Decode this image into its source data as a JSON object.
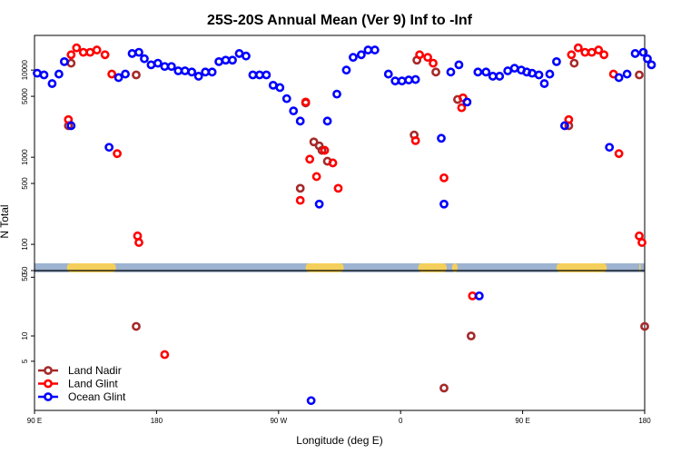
{
  "chart_data": {
    "type": "scatter",
    "title": "25S-20S Annual Mean (Ver 9)   Inf to -Inf",
    "xlabel": "Longitude (deg E)",
    "ylabel": "N Total",
    "x_ticks": [
      {
        "value": 90,
        "label": "90 E"
      },
      {
        "value": 180,
        "label": "180"
      },
      {
        "value": 270,
        "label": "90 W"
      },
      {
        "value": 360,
        "label": "0"
      },
      {
        "value": 450,
        "label": "90 E"
      },
      {
        "value": 540,
        "label": "180"
      }
    ],
    "xlim": [
      90,
      540
    ],
    "upper_panel": {
      "scale": "log",
      "ylim": [
        50,
        25000
      ],
      "y_ticks": [
        {
          "value": 50,
          "label": "50"
        },
        {
          "value": 100,
          "label": "100"
        },
        {
          "value": 500,
          "label": "500"
        },
        {
          "value": 1000,
          "label": "1000"
        },
        {
          "value": 5000,
          "label": "5000"
        },
        {
          "value": 10000,
          "label": "10000"
        }
      ]
    },
    "lower_panel": {
      "scale": "log",
      "ylim": [
        1.3,
        60
      ],
      "y_ticks": [
        {
          "value": 5,
          "label": "5"
        },
        {
          "value": 10,
          "label": "10"
        },
        {
          "value": 50,
          "label": "50"
        }
      ]
    },
    "land_bands": [
      [
        114,
        150
      ],
      [
        290,
        318
      ],
      [
        373,
        394
      ],
      [
        398,
        402
      ],
      [
        475,
        512
      ],
      [
        536,
        537
      ]
    ],
    "series": [
      {
        "name": "Land Nadir",
        "color": "#a52a2a",
        "points": [
          [
            115,
            2300
          ],
          [
            117,
            12000
          ],
          [
            165,
            8800
          ],
          [
            286,
            440
          ],
          [
            290,
            4200
          ],
          [
            296,
            1500
          ],
          [
            300,
            1350
          ],
          [
            302,
            1200
          ],
          [
            306,
            900
          ],
          [
            370,
            1800
          ],
          [
            372,
            13000
          ],
          [
            386,
            9500
          ],
          [
            402,
            4600
          ],
          [
            484,
            2300
          ],
          [
            488,
            12000
          ],
          [
            536,
            8800
          ]
        ],
        "lower": [
          [
            165,
            13
          ],
          [
            392,
            2.4
          ],
          [
            412,
            10
          ],
          [
            540,
            13
          ]
        ]
      },
      {
        "name": "Land Glint",
        "color": "#ff0000",
        "points": [
          [
            115,
            2700
          ],
          [
            117,
            15000
          ],
          [
            121,
            18000
          ],
          [
            126,
            16000
          ],
          [
            131,
            16000
          ],
          [
            136,
            17000
          ],
          [
            142,
            15000
          ],
          [
            147,
            9000
          ],
          [
            151,
            1100
          ],
          [
            166,
            125
          ],
          [
            167,
            105
          ],
          [
            286,
            320
          ],
          [
            290,
            4300
          ],
          [
            293,
            950
          ],
          [
            298,
            600
          ],
          [
            304,
            1200
          ],
          [
            310,
            860
          ],
          [
            314,
            440
          ],
          [
            371,
            1550
          ],
          [
            374,
            15000
          ],
          [
            380,
            14000
          ],
          [
            384,
            12000
          ],
          [
            392,
            580
          ],
          [
            405,
            3700
          ],
          [
            406,
            4800
          ],
          [
            484,
            2700
          ],
          [
            486,
            15000
          ],
          [
            491,
            18000
          ],
          [
            496,
            16000
          ],
          [
            501,
            16000
          ],
          [
            506,
            17000
          ],
          [
            510,
            15000
          ],
          [
            517,
            9000
          ],
          [
            521,
            1100
          ],
          [
            536,
            125
          ],
          [
            538,
            105
          ]
        ],
        "lower": [
          [
            186,
            6
          ],
          [
            413,
            30
          ]
        ]
      },
      {
        "name": "Ocean Glint",
        "color": "#0000ff",
        "points": [
          [
            92,
            9200
          ],
          [
            97,
            8800
          ],
          [
            103,
            7000
          ],
          [
            108,
            9000
          ],
          [
            112,
            12500
          ],
          [
            117,
            2300
          ],
          [
            145,
            1300
          ],
          [
            152,
            8200
          ],
          [
            157,
            9000
          ],
          [
            162,
            15500
          ],
          [
            167,
            16000
          ],
          [
            171,
            13500
          ],
          [
            176,
            11500
          ],
          [
            181,
            12000
          ],
          [
            186,
            11000
          ],
          [
            191,
            11000
          ],
          [
            196,
            9800
          ],
          [
            201,
            9800
          ],
          [
            206,
            9500
          ],
          [
            211,
            8500
          ],
          [
            216,
            9500
          ],
          [
            221,
            9500
          ],
          [
            226,
            12500
          ],
          [
            231,
            13000
          ],
          [
            236,
            13000
          ],
          [
            241,
            15500
          ],
          [
            246,
            14500
          ],
          [
            251,
            8800
          ],
          [
            256,
            8800
          ],
          [
            261,
            8800
          ],
          [
            266,
            6700
          ],
          [
            271,
            6300
          ],
          [
            276,
            4700
          ],
          [
            281,
            3400
          ],
          [
            286,
            2600
          ],
          [
            300,
            290
          ],
          [
            306,
            2600
          ],
          [
            313,
            5300
          ],
          [
            320,
            10000
          ],
          [
            325,
            14000
          ],
          [
            331,
            15000
          ],
          [
            336,
            17000
          ],
          [
            341,
            17000
          ],
          [
            351,
            9000
          ],
          [
            356,
            7500
          ],
          [
            361,
            7500
          ],
          [
            366,
            7700
          ],
          [
            371,
            7800
          ],
          [
            390,
            1650
          ],
          [
            392,
            290
          ],
          [
            397,
            9500
          ],
          [
            403,
            11500
          ],
          [
            409,
            4300
          ],
          [
            417,
            9500
          ],
          [
            423,
            9500
          ],
          [
            428,
            8500
          ],
          [
            433,
            8500
          ],
          [
            439,
            9800
          ],
          [
            444,
            10500
          ],
          [
            449,
            10000
          ],
          [
            453,
            9500
          ],
          [
            457,
            9200
          ],
          [
            462,
            8800
          ],
          [
            466,
            7000
          ],
          [
            470,
            9000
          ],
          [
            475,
            12500
          ],
          [
            481,
            2300
          ],
          [
            514,
            1300
          ],
          [
            521,
            8200
          ],
          [
            527,
            9000
          ],
          [
            533,
            15500
          ],
          [
            539,
            16000
          ],
          [
            542,
            13500
          ],
          [
            545,
            11500
          ]
        ],
        "lower": [
          [
            294,
            1.7
          ],
          [
            418,
            30
          ]
        ]
      }
    ]
  }
}
